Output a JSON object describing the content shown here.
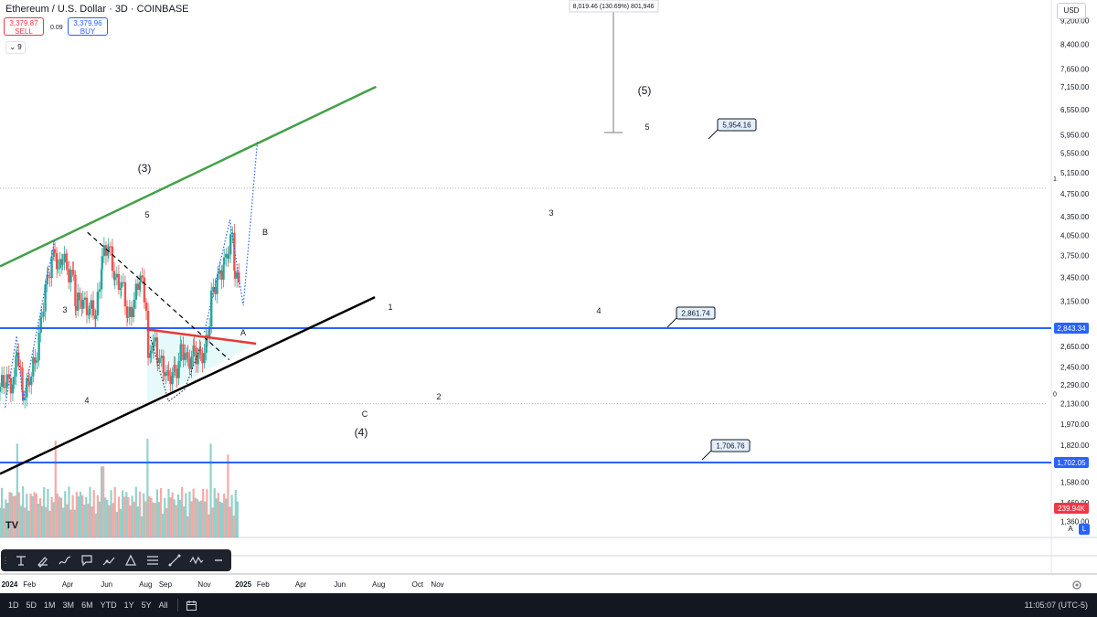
{
  "header": {
    "title": "Ethereum / U.S. Dollar · 3D · COINBASE",
    "sell_price": "3,379.87",
    "sell_label": "SELL",
    "spread": "0.09",
    "buy_price": "3,379.96",
    "buy_label": "BUY",
    "collapse_label": "⌄ 9",
    "currency": "USD"
  },
  "chart_data": {
    "type": "candlestick",
    "symbol": "Ethereum / U.S. Dollar",
    "interval": "3D",
    "exchange": "COINBASE",
    "y_scale": "log",
    "ylim": [
      1280,
      10000
    ],
    "y_ticks": [
      "9,200.00",
      "8,400.00",
      "7,650.00",
      "7,150.00",
      "6,550.00",
      "5,950.00",
      "5,550.00",
      "5,150.00",
      "4,750.00",
      "4,350.00",
      "4,050.00",
      "3,750.00",
      "3,450.00",
      "3,150.00",
      "2,650.00",
      "2,450.00",
      "2,290.00",
      "2,130.00",
      "1,970.00",
      "1,820.00",
      "1,580.00",
      "1,460.00",
      "1,360.00"
    ],
    "x_ticks": [
      "2024",
      "Feb",
      "Apr",
      "Jun",
      "Aug",
      "Sep",
      "Nov",
      "2025",
      "Feb",
      "Apr",
      "Jun",
      "Aug",
      "Oct",
      "Nov"
    ],
    "x_range": [
      "2023-12-17",
      "2025-12-05"
    ],
    "price_path": [
      [
        "2023-12-17",
        2230
      ],
      [
        "2023-12-28",
        2380
      ],
      [
        "2024-01-08",
        2250
      ],
      [
        "2024-01-12",
        2600
      ],
      [
        "2024-01-22",
        2250
      ],
      [
        "2024-02-01",
        2300
      ],
      [
        "2024-02-10",
        2500
      ],
      [
        "2024-02-20",
        3000
      ],
      [
        "2024-03-01",
        3400
      ],
      [
        "2024-03-12",
        3950
      ],
      [
        "2024-03-17",
        3500
      ],
      [
        "2024-03-24",
        3700
      ],
      [
        "2024-03-31",
        3600
      ],
      [
        "2024-04-10",
        3500
      ],
      [
        "2024-04-14",
        3050
      ],
      [
        "2024-04-25",
        3200
      ],
      [
        "2024-05-05",
        3050
      ],
      [
        "2024-05-15",
        2950
      ],
      [
        "2024-05-25",
        3800
      ],
      [
        "2024-06-04",
        3800
      ],
      [
        "2024-06-14",
        3500
      ],
      [
        "2024-06-24",
        3350
      ],
      [
        "2024-07-04",
        2950
      ],
      [
        "2024-07-14",
        3200
      ],
      [
        "2024-07-24",
        3400
      ],
      [
        "2024-08-02",
        3150
      ],
      [
        "2024-08-05",
        2500
      ],
      [
        "2024-08-10",
        2700
      ],
      [
        "2024-08-20",
        2550
      ],
      [
        "2024-08-30",
        2500
      ],
      [
        "2024-09-06",
        2300
      ],
      [
        "2024-09-16",
        2400
      ],
      [
        "2024-09-26",
        2650
      ],
      [
        "2024-10-06",
        2450
      ],
      [
        "2024-10-16",
        2650
      ],
      [
        "2024-10-26",
        2500
      ],
      [
        "2024-11-01",
        2550
      ],
      [
        "2024-11-06",
        2800
      ],
      [
        "2024-11-12",
        3250
      ],
      [
        "2024-11-22",
        3350
      ],
      [
        "2024-12-02",
        3700
      ],
      [
        "2024-12-09",
        3900
      ],
      [
        "2024-12-15",
        3950
      ],
      [
        "2024-12-19",
        3500
      ],
      [
        "2024-12-25",
        3380
      ]
    ],
    "volume_scale": "relative",
    "volume": [
      {
        "date": "2024-01-12",
        "v": 0.95
      },
      {
        "date": "2024-03-12",
        "v": 0.98
      },
      {
        "date": "2024-05-25",
        "v": 0.72
      },
      {
        "date": "2024-08-05",
        "v": 1.0
      },
      {
        "date": "2024-11-12",
        "v": 0.95
      },
      {
        "date": "2024-12-09",
        "v": 0.84
      }
    ],
    "last_volume": "239.94K",
    "horizontal_levels": [
      {
        "value": 2843.34,
        "label": "2,843.34",
        "color": "#2962ff"
      },
      {
        "value": 1702.05,
        "label": "1,702.05",
        "color": "#2962ff"
      }
    ],
    "callouts": [
      "5,954.16",
      "2,861.74",
      "1,706.76"
    ],
    "fib_levels": [
      {
        "value": 4850,
        "label": "1"
      },
      {
        "value": 2130,
        "label": "0"
      }
    ],
    "measure_label": "8,019.46 (130.69%) 801,946",
    "wave_labels": [
      "(3)",
      "5",
      "3",
      "4",
      "B",
      "A",
      "1",
      "C",
      "(4)",
      "2",
      "3",
      "4",
      "5",
      "(5)"
    ],
    "trendlines": [
      {
        "name": "upper channel",
        "color": "#43a047",
        "from": [
          "2023-12-17",
          3600
        ],
        "to": [
          "2025-07-28",
          7150
        ]
      },
      {
        "name": "lower channel",
        "color": "#000000",
        "from": [
          "2023-12-17",
          1630
        ],
        "to": [
          "2025-07-26",
          3200
        ]
      },
      {
        "name": "B-wave downtrend",
        "style": "dashed",
        "color": "#000000",
        "from": [
          "2024-05-02",
          4100
        ],
        "to": [
          "2024-12-10",
          2520
        ]
      },
      {
        "name": "triangle upper",
        "color": "#e53935",
        "from": [
          "2024-08-03",
          2830
        ],
        "to": [
          "2025-01-21",
          2680
        ]
      }
    ],
    "projection_path": [
      [
        "2024-11-01",
        2800
      ],
      [
        "2024-12-11",
        4300
      ],
      [
        "2025-01-01",
        3100
      ],
      [
        "2025-01-23",
        5800
      ]
    ],
    "colors": {
      "up": "#26a69a",
      "down": "#ef5350",
      "level": "#2962ff",
      "channel_up": "#43a047",
      "channel_dn": "#000000",
      "projection": "#2962ff",
      "triangle_fill": "#e0f7fa"
    }
  },
  "toolbar": {
    "tools": [
      "text-tool",
      "brush-tool",
      "highlighter-tool",
      "callout-tool",
      "path-tool",
      "triangle-tool",
      "fib-tool",
      "trendline-tool",
      "wave-tool",
      "more-tool"
    ]
  },
  "bottom_bar": {
    "ranges": [
      "1D",
      "5D",
      "1M",
      "3M",
      "6M",
      "YTD",
      "1Y",
      "5Y",
      "All"
    ],
    "time": "11:05:07 (UTC-5)"
  },
  "scale_buttons": {
    "auto": "A",
    "log": "L"
  },
  "logo_text": "TV"
}
